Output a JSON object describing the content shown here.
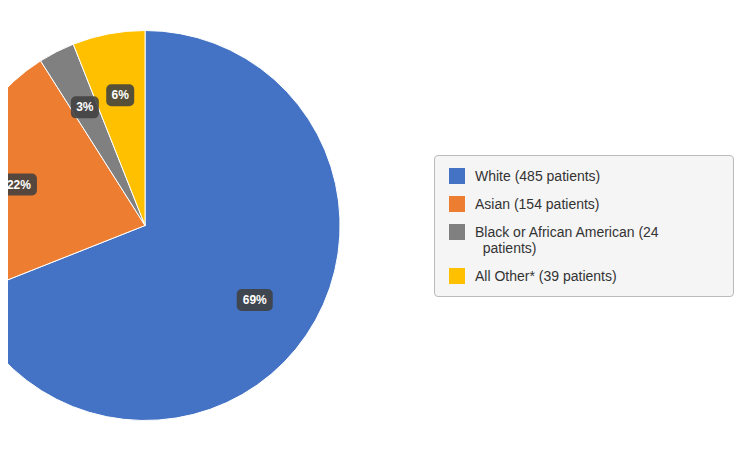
{
  "chart_data": {
    "type": "pie",
    "categories": [
      "White (485 patients)",
      "Asian (154 patients)",
      "Black or African American (24\n  patients)",
      "All Other* (39 patients)"
    ],
    "values": [
      69,
      22,
      3,
      6
    ],
    "value_labels": [
      "69%",
      "22%",
      "3%",
      "6%"
    ],
    "colors": [
      "#4472C4",
      "#ED7D31",
      "#808080",
      "#FFC000"
    ],
    "data_labels": true,
    "legend": "right"
  }
}
